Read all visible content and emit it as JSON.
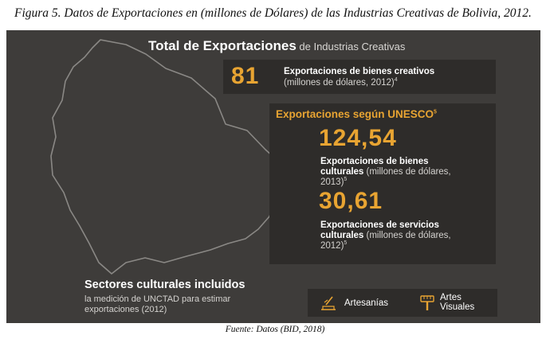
{
  "caption": "Figura 5. Datos de Exportaciones en (millones de Dólares) de las Industrias Creativas de Bolivia,  2012.",
  "infographic": {
    "title_bold": "Total de Exportaciones",
    "title_light": " de Industrias Creativas",
    "total": {
      "value": "81",
      "label_bold": "Exportaciones de bienes creativos",
      "label_light": "(millones de dólares, 2012)",
      "footnote": "4"
    },
    "unesco": {
      "heading": "Exportaciones según UNESCO",
      "heading_footnote": "5",
      "goods_value": "124,54",
      "goods_label_bold": "Exportaciones de bienes culturales",
      "goods_label_light": " (millones de dólares, 2013)",
      "goods_footnote": "5",
      "services_value": "30,61",
      "services_label_bold": "Exportaciones de servicios culturales",
      "services_label_light": " (millones de dólares, 2012)",
      "services_footnote": "5"
    },
    "sectors": {
      "title": "Sectores culturales incluidos",
      "subtitle": "la medición de UNCTAD para estimar exportaciones (2012)",
      "items": [
        {
          "label": "Artesanías",
          "icon": "crafts-icon"
        },
        {
          "label": "Artes Visuales",
          "icon": "paint-brush-icon"
        }
      ]
    },
    "colors": {
      "background": "#3e3c3a",
      "box": "#2e2c2a",
      "accent": "#e8a432",
      "map_outline": "#8a8885"
    }
  },
  "source": "Fuente: Datos (BID, 2018)"
}
